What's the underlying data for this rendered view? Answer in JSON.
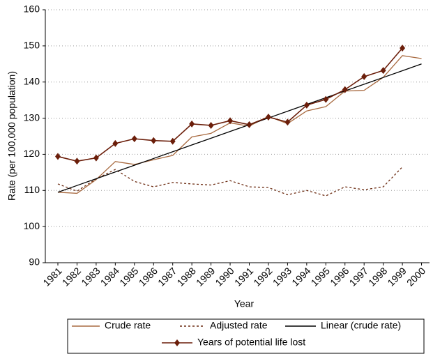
{
  "chart_data": {
    "type": "line",
    "x_label": "Year",
    "y_label": "Rate (per 100,000 population)",
    "categories": [
      "1981",
      "1982",
      "1983",
      "1984",
      "1985",
      "1986",
      "1987",
      "1988",
      "1989",
      "1990",
      "1991",
      "1992",
      "1993",
      "1994",
      "1995",
      "1996",
      "1997",
      "1998",
      "1999",
      "2000"
    ],
    "series": [
      {
        "name": "Crude rate",
        "color": "#a86a40",
        "dash": false,
        "marker": false,
        "values": [
          109.5,
          109.2,
          113,
          118,
          117.2,
          118.5,
          119.7,
          124.8,
          125.8,
          128.7,
          127.8,
          130.5,
          128.5,
          132,
          133.2,
          137.5,
          137.7,
          141.3,
          147.3,
          146.5
        ]
      },
      {
        "name": "Adjusted rate",
        "color": "#6b2a10",
        "dash": true,
        "marker": false,
        "values": [
          111.8,
          109.8,
          113.2,
          115.8,
          112.5,
          111.0,
          112.2,
          111.8,
          111.5,
          112.7,
          111.0,
          110.8,
          108.8,
          110.0,
          108.5,
          111.0,
          110.2,
          111.0,
          116.5,
          null
        ]
      },
      {
        "name": "Linear (crude rate)",
        "color": "#000000",
        "dash": false,
        "marker": false,
        "values": [
          109.5,
          111.37,
          113.24,
          115.11,
          116.97,
          118.84,
          120.71,
          122.58,
          124.45,
          126.32,
          128.18,
          130.05,
          131.92,
          133.79,
          135.66,
          137.53,
          139.39,
          141.26,
          143.13,
          145.0
        ]
      },
      {
        "name": "Years of potential life lost",
        "color": "#6b1e0a",
        "dash": false,
        "marker": true,
        "values": [
          119.4,
          118.1,
          119.0,
          123.0,
          124.3,
          123.8,
          123.6,
          128.4,
          128.0,
          129.3,
          128.2,
          130.3,
          128.9,
          133.6,
          135.2,
          137.9,
          141.5,
          143.2,
          149.4,
          null
        ]
      }
    ],
    "ylim": [
      90,
      160
    ],
    "yticks": [
      90,
      100,
      110,
      120,
      130,
      140,
      150,
      160
    ],
    "grid": true
  }
}
